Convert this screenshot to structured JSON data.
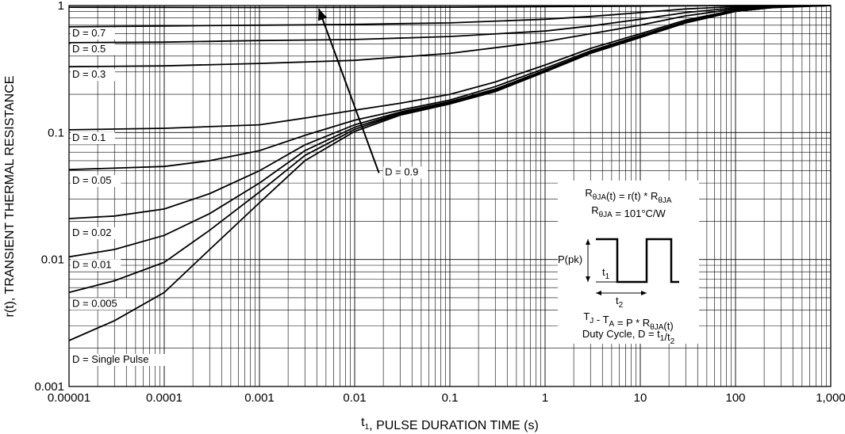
{
  "chart_data": {
    "type": "line",
    "scale": {
      "x": "log",
      "y": "log"
    },
    "xlim": [
      1e-05,
      1000
    ],
    "ylim": [
      0.001,
      1
    ],
    "grid": true,
    "xlabel_parts": [
      "t",
      "1",
      ", PULSE DURATION TIME (s)"
    ],
    "ylabel": "r(t), TRANSIENT THERMAL RESISTANCE",
    "xticks": [
      {
        "v": 1e-05,
        "label": "0.00001"
      },
      {
        "v": 0.0001,
        "label": "0.0001"
      },
      {
        "v": 0.001,
        "label": "0.001"
      },
      {
        "v": 0.01,
        "label": "0.01"
      },
      {
        "v": 0.1,
        "label": "0.1"
      },
      {
        "v": 1,
        "label": "1"
      },
      {
        "v": 10,
        "label": "10"
      },
      {
        "v": 100,
        "label": "100"
      },
      {
        "v": 1000,
        "label": "1,000"
      }
    ],
    "yticks": [
      {
        "v": 0.001,
        "label": "0.001"
      },
      {
        "v": 0.01,
        "label": "0.01"
      },
      {
        "v": 0.1,
        "label": "0.1"
      },
      {
        "v": 1,
        "label": "1"
      }
    ],
    "series": [
      {
        "name": "D = 0.9",
        "points": [
          [
            1e-05,
            0.97
          ],
          [
            0.001,
            0.965
          ],
          [
            0.1,
            0.97
          ],
          [
            1,
            0.98
          ],
          [
            10,
            0.99
          ],
          [
            100,
            1.0
          ],
          [
            1000,
            1.0
          ]
        ]
      },
      {
        "name": "D = 0.7",
        "points": [
          [
            1e-05,
            0.68
          ],
          [
            0.0001,
            0.69
          ],
          [
            0.001,
            0.7
          ],
          [
            0.01,
            0.71
          ],
          [
            0.1,
            0.73
          ],
          [
            1,
            0.78
          ],
          [
            3,
            0.82
          ],
          [
            10,
            0.88
          ],
          [
            30,
            0.94
          ],
          [
            100,
            0.98
          ],
          [
            1000,
            1.0
          ]
        ]
      },
      {
        "name": "D = 0.5",
        "points": [
          [
            1e-05,
            0.51
          ],
          [
            0.0001,
            0.515
          ],
          [
            0.001,
            0.53
          ],
          [
            0.01,
            0.54
          ],
          [
            0.1,
            0.57
          ],
          [
            1,
            0.63
          ],
          [
            3,
            0.69
          ],
          [
            10,
            0.78
          ],
          [
            30,
            0.88
          ],
          [
            100,
            0.96
          ],
          [
            1000,
            1.0
          ]
        ]
      },
      {
        "name": "D = 0.3",
        "points": [
          [
            1e-05,
            0.33
          ],
          [
            0.0001,
            0.335
          ],
          [
            0.001,
            0.35
          ],
          [
            0.01,
            0.37
          ],
          [
            0.1,
            0.42
          ],
          [
            1,
            0.52
          ],
          [
            3,
            0.6
          ],
          [
            10,
            0.7
          ],
          [
            30,
            0.83
          ],
          [
            100,
            0.94
          ],
          [
            1000,
            1.0
          ]
        ]
      },
      {
        "name": "D = 0.1",
        "points": [
          [
            1e-05,
            0.105
          ],
          [
            0.0001,
            0.108
          ],
          [
            0.001,
            0.115
          ],
          [
            0.003,
            0.13
          ],
          [
            0.01,
            0.15
          ],
          [
            0.03,
            0.17
          ],
          [
            0.1,
            0.2
          ],
          [
            0.3,
            0.25
          ],
          [
            1,
            0.34
          ],
          [
            3,
            0.46
          ],
          [
            10,
            0.6
          ],
          [
            30,
            0.77
          ],
          [
            100,
            0.92
          ],
          [
            300,
            0.98
          ],
          [
            1000,
            1.0
          ]
        ]
      },
      {
        "name": "D = 0.05",
        "points": [
          [
            1e-05,
            0.051
          ],
          [
            0.0001,
            0.054
          ],
          [
            0.0003,
            0.06
          ],
          [
            0.001,
            0.072
          ],
          [
            0.003,
            0.095
          ],
          [
            0.01,
            0.125
          ],
          [
            0.03,
            0.15
          ],
          [
            0.1,
            0.18
          ],
          [
            0.3,
            0.23
          ],
          [
            1,
            0.32
          ],
          [
            3,
            0.44
          ],
          [
            10,
            0.58
          ],
          [
            30,
            0.75
          ],
          [
            100,
            0.91
          ],
          [
            300,
            0.98
          ],
          [
            1000,
            1.0
          ]
        ]
      },
      {
        "name": "D = 0.02",
        "points": [
          [
            1e-05,
            0.021
          ],
          [
            3e-05,
            0.022
          ],
          [
            0.0001,
            0.025
          ],
          [
            0.0003,
            0.033
          ],
          [
            0.001,
            0.05
          ],
          [
            0.003,
            0.08
          ],
          [
            0.01,
            0.115
          ],
          [
            0.03,
            0.145
          ],
          [
            0.1,
            0.175
          ],
          [
            0.3,
            0.22
          ],
          [
            1,
            0.31
          ],
          [
            3,
            0.43
          ],
          [
            10,
            0.57
          ],
          [
            30,
            0.74
          ],
          [
            100,
            0.9
          ],
          [
            300,
            0.98
          ],
          [
            1000,
            1.0
          ]
        ]
      },
      {
        "name": "D = 0.01",
        "points": [
          [
            1e-05,
            0.0105
          ],
          [
            3e-05,
            0.012
          ],
          [
            0.0001,
            0.0155
          ],
          [
            0.0003,
            0.023
          ],
          [
            0.001,
            0.04
          ],
          [
            0.003,
            0.072
          ],
          [
            0.01,
            0.11
          ],
          [
            0.03,
            0.142
          ],
          [
            0.1,
            0.172
          ],
          [
            0.3,
            0.215
          ],
          [
            1,
            0.305
          ],
          [
            3,
            0.425
          ],
          [
            10,
            0.565
          ],
          [
            30,
            0.735
          ],
          [
            100,
            0.9
          ],
          [
            300,
            0.98
          ],
          [
            1000,
            1.0
          ]
        ]
      },
      {
        "name": "D = 0.005",
        "points": [
          [
            1e-05,
            0.0055
          ],
          [
            3e-05,
            0.0068
          ],
          [
            0.0001,
            0.0095
          ],
          [
            0.0003,
            0.017
          ],
          [
            0.001,
            0.034
          ],
          [
            0.003,
            0.066
          ],
          [
            0.01,
            0.106
          ],
          [
            0.03,
            0.14
          ],
          [
            0.1,
            0.17
          ],
          [
            0.3,
            0.212
          ],
          [
            1,
            0.302
          ],
          [
            3,
            0.422
          ],
          [
            10,
            0.562
          ],
          [
            30,
            0.732
          ],
          [
            100,
            0.9
          ],
          [
            300,
            0.98
          ],
          [
            1000,
            1.0
          ]
        ]
      },
      {
        "name": "D = Single Pulse",
        "points": [
          [
            1e-05,
            0.0023
          ],
          [
            3e-05,
            0.0033
          ],
          [
            0.0001,
            0.0055
          ],
          [
            0.0003,
            0.012
          ],
          [
            0.001,
            0.028
          ],
          [
            0.003,
            0.06
          ],
          [
            0.01,
            0.102
          ],
          [
            0.03,
            0.137
          ],
          [
            0.1,
            0.168
          ],
          [
            0.3,
            0.21
          ],
          [
            1,
            0.3
          ],
          [
            3,
            0.42
          ],
          [
            10,
            0.56
          ],
          [
            30,
            0.73
          ],
          [
            100,
            0.9
          ],
          [
            300,
            0.98
          ],
          [
            1000,
            1.0
          ]
        ]
      }
    ],
    "labels": [
      {
        "text": "D = 0.7",
        "x": 1e-05,
        "y": 0.68
      },
      {
        "text": "D = 0.5",
        "x": 1e-05,
        "y": 0.51
      },
      {
        "text": "D = 0.3",
        "x": 1e-05,
        "y": 0.33
      },
      {
        "text": "D = 0.1",
        "x": 1e-05,
        "y": 0.105
      },
      {
        "text": "D = 0.05",
        "x": 1e-05,
        "y": 0.051
      },
      {
        "text": "D = 0.02",
        "x": 1e-05,
        "y": 0.021
      },
      {
        "text": "D = 0.01",
        "x": 1e-05,
        "y": 0.0105
      },
      {
        "text": "D = 0.005",
        "x": 1e-05,
        "y": 0.0055
      },
      {
        "text": "D = Single Pulse",
        "x": 1e-05,
        "y": 0.0023
      },
      {
        "text": "D = 0.9",
        "x": 0.02,
        "y": 0.046
      }
    ],
    "annotations": {
      "arrow_label": "D = 0.9",
      "inset": {
        "line1": {
          "a": "R",
          "a_sub": "θJA",
          "b": "(t) = r(t) * R",
          "b_sub": "θJA"
        },
        "line2": {
          "a": "R",
          "a_sub": "θJA",
          "b": " = 101°C/W"
        },
        "ppk": "P(pk)",
        "t1": {
          "a": "t",
          "sub": "1"
        },
        "t2": {
          "a": "t",
          "sub": "2"
        },
        "line3": {
          "a": "T",
          "a_sub": "J",
          "b": " - T",
          "b_sub": "A",
          "c": " = P * R",
          "c_sub": "θJA",
          "d": "(t)"
        },
        "line4": {
          "a": "Duty Cycle, D = t",
          "a_sub": "1",
          "b": "/t",
          "b_sub": "2"
        }
      }
    }
  }
}
